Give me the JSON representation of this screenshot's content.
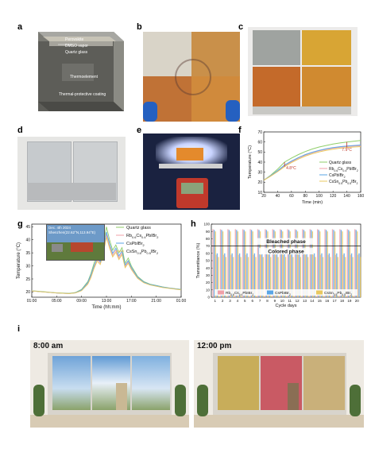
{
  "panels": {
    "a": {
      "label": "a",
      "layers": [
        "Perovskite",
        "DMSO vapor",
        "Quartz glass",
        "Thermoelement",
        "Thermal-protective coating"
      ]
    },
    "b": {
      "label": "b"
    },
    "c": {
      "label": "c"
    },
    "d": {
      "label": "d"
    },
    "e": {
      "label": "e"
    },
    "f": {
      "label": "f",
      "annotations": [
        "4.8°C",
        "7.9°C"
      ]
    },
    "g": {
      "label": "g",
      "inset_date": "Dec. 4th 2024",
      "inset_location": "Shenzhen(22.62°N,113.94°E)"
    },
    "h": {
      "label": "h",
      "bleached": "Bleached phase",
      "colored": "Colored phase"
    },
    "i": {
      "label": "i",
      "time_left": "8:00 am",
      "time_right": "12:00 pm"
    }
  },
  "colors": {
    "quartz": "#8fce6a",
    "rbcs": "#f0a0a8",
    "cspbi": "#5aa5e6",
    "cssn": "#e8c860"
  },
  "chart_data": [
    {
      "id": "f",
      "type": "line",
      "xlabel": "Time (min)",
      "ylabel": "Temperature (°C)",
      "xlim": [
        20,
        160
      ],
      "ylim": [
        10,
        70
      ],
      "xticks": [
        "20",
        "40",
        "60",
        "80",
        "100",
        "120",
        "140",
        "160"
      ],
      "yticks": [
        "10",
        "20",
        "30",
        "40",
        "50",
        "60",
        "70"
      ],
      "x": [
        20,
        30,
        40,
        50,
        60,
        70,
        80,
        90,
        100,
        110,
        120,
        130,
        140,
        150,
        160
      ],
      "legend_position": "lower-right",
      "series": [
        {
          "name": "Quartz glass",
          "values": [
            22,
            27,
            33,
            40,
            44,
            47.5,
            50.5,
            53,
            55,
            56.5,
            58,
            59,
            60,
            60.8,
            61.5
          ]
        },
        {
          "name": "Rb0.6Cs0.4PbIBr2",
          "values": [
            22,
            26.5,
            31,
            36.5,
            40.5,
            44,
            47,
            49.3,
            51.2,
            52.7,
            53.9,
            54.8,
            55.5,
            56,
            56.4
          ]
        },
        {
          "name": "CsPbIBr2",
          "values": [
            22,
            26.5,
            31.5,
            37,
            41,
            44.5,
            47.5,
            49.8,
            51.7,
            53.2,
            54.4,
            55.3,
            56,
            56.5,
            57
          ]
        },
        {
          "name": "CsSn0.5Pb0.5IBr2",
          "values": [
            22,
            26,
            30.5,
            35.5,
            39.5,
            43,
            46,
            48.3,
            50.2,
            51.7,
            52.9,
            53.8,
            54.5,
            55,
            55.4
          ]
        }
      ]
    },
    {
      "id": "g",
      "type": "line",
      "xlabel": "Time (hh:mm)",
      "ylabel": "Temperature (°C)",
      "xlim": [
        0,
        24
      ],
      "ylim": [
        18,
        46
      ],
      "xticks": [
        "01:00",
        "05:00",
        "09:00",
        "13:00",
        "17:00",
        "21:00",
        "01:00"
      ],
      "yticks": [
        "20",
        "25",
        "30",
        "35",
        "40",
        "45"
      ],
      "x": [
        0,
        1,
        2,
        3,
        4,
        5,
        6,
        7,
        8,
        9,
        9.5,
        10,
        10.5,
        11,
        11.5,
        12,
        12.5,
        13,
        13.5,
        14,
        14.5,
        15,
        15.5,
        16,
        17,
        18,
        19,
        20,
        21,
        22,
        23,
        24
      ],
      "legend_position": "top-right",
      "series": [
        {
          "name": "Quartz glass",
          "values": [
            20.5,
            20.3,
            20.1,
            19.9,
            19.7,
            19.6,
            19.5,
            19.8,
            21,
            24,
            27,
            31,
            34.5,
            33,
            38,
            45,
            40,
            36,
            38,
            35,
            37,
            31,
            33,
            30,
            26,
            24,
            23,
            22.5,
            22,
            21.6,
            21.3,
            21
          ]
        },
        {
          "name": "Rb0.6Cs0.4PbIBr2",
          "values": [
            20.4,
            20.2,
            20,
            19.8,
            19.6,
            19.5,
            19.4,
            19.7,
            20.7,
            23.3,
            26,
            29.5,
            32.5,
            31,
            35.5,
            42,
            37.5,
            34,
            36,
            33,
            35,
            29.8,
            31.5,
            29,
            25.5,
            23.7,
            22.8,
            22.3,
            21.8,
            21.5,
            21.2,
            20.9
          ]
        },
        {
          "name": "CsPbIBr2",
          "values": [
            20.4,
            20.2,
            20,
            19.8,
            19.6,
            19.5,
            19.4,
            19.7,
            20.8,
            23.6,
            26.5,
            30,
            33,
            31.5,
            36.5,
            43,
            38.5,
            34.8,
            36.8,
            33.8,
            35.8,
            30.3,
            32,
            29.4,
            25.7,
            23.8,
            22.9,
            22.4,
            21.9,
            21.5,
            21.2,
            20.9
          ]
        },
        {
          "name": "CsSn0.5Pb0.5IBr2",
          "values": [
            20.4,
            20.2,
            20,
            19.8,
            19.6,
            19.5,
            19.4,
            19.6,
            20.5,
            23,
            25.5,
            29,
            31.8,
            30.5,
            34.8,
            41,
            36.8,
            33.4,
            35.2,
            32.4,
            34.3,
            29.3,
            31,
            28.6,
            25.2,
            23.5,
            22.7,
            22.2,
            21.7,
            21.4,
            21.1,
            20.8
          ]
        }
      ]
    },
    {
      "id": "h",
      "type": "bar",
      "xlabel": "Cycle days",
      "ylabel": "Transmittance (%)",
      "ylim": [
        0,
        100
      ],
      "yticks": [
        "0",
        "10",
        "20",
        "30",
        "40",
        "50",
        "60",
        "70",
        "80",
        "90",
        "100"
      ],
      "categories": [
        "1",
        "2",
        "3",
        "4",
        "5",
        "6",
        "7",
        "8",
        "9",
        "10",
        "11",
        "12",
        "13",
        "14",
        "15",
        "16",
        "17",
        "18",
        "19",
        "20"
      ],
      "threshold": 70,
      "legend_position": "bottom",
      "series": [
        {
          "name": "Rb0.6Cs0.4PbIBr2",
          "bleached": 93,
          "colored": 58
        },
        {
          "name": "CsPbIBr2",
          "bleached": 92,
          "colored": 60
        },
        {
          "name": "CsSn0.5Pb0.5IBr2",
          "bleached": 90,
          "colored": 55
        }
      ]
    }
  ]
}
